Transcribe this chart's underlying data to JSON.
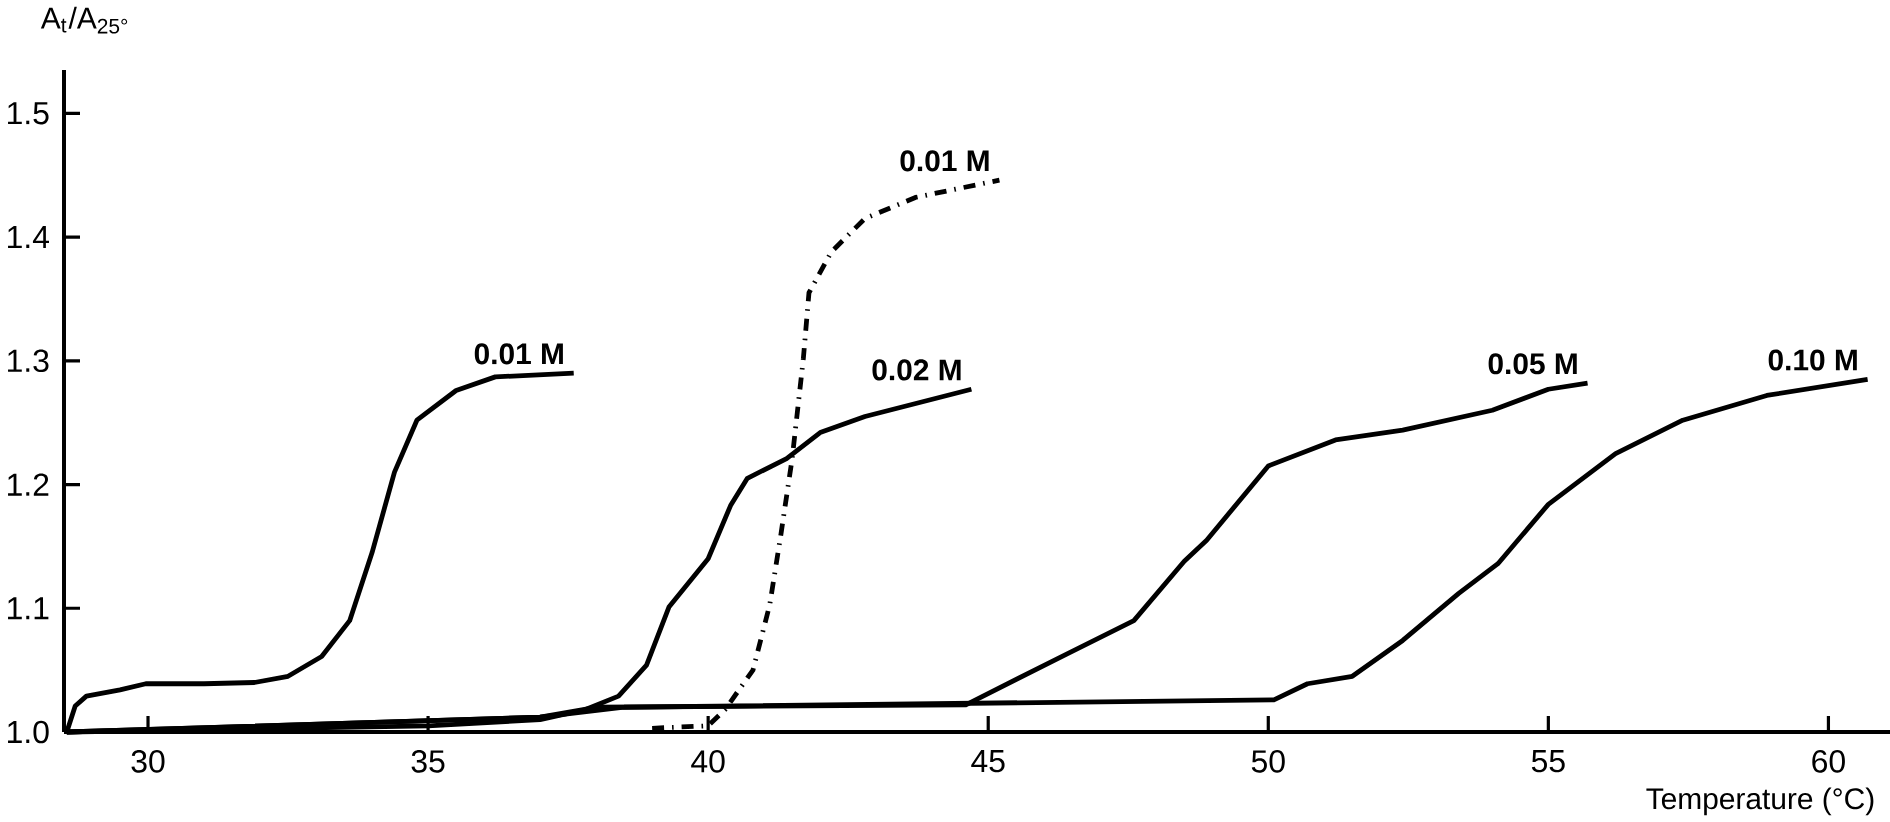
{
  "chart_data": {
    "type": "line",
    "xlabel": "Temperature  (°C)",
    "ylabel": "A$_{t}$/A$_{25°}$",
    "xlim": [
      28.5,
      61.1
    ],
    "ylim": [
      1.0,
      1.535
    ],
    "xticks": [
      30,
      35,
      40,
      45,
      50,
      55,
      60
    ],
    "yticks": [
      {
        "value": 1.0,
        "label": "1.0"
      },
      1.1,
      1.2,
      1.3,
      1.4,
      1.5
    ],
    "grid": false,
    "marker": "none",
    "series": [
      {
        "name": "0.01 M",
        "color": "#000000",
        "line_style": "solid",
        "x": [
          28.55,
          28.7,
          28.9,
          29.5,
          29.96,
          31.0,
          31.9,
          32.5,
          33.1,
          33.6,
          34.0,
          34.4,
          34.8,
          35.5,
          36.2,
          37.6
        ],
        "values": [
          1.0,
          1.021,
          1.029,
          1.034,
          1.039,
          1.039,
          1.04,
          1.045,
          1.061,
          1.09,
          1.145,
          1.21,
          1.252,
          1.276,
          1.287,
          1.29
        ]
      },
      {
        "name": "0.02 M",
        "color": "#000000",
        "line_style": "solid",
        "x": [
          28.55,
          35.0,
          37.0,
          37.8,
          38.4,
          38.9,
          39.3,
          40.0,
          40.4,
          40.7,
          41.4,
          42.0,
          42.8,
          44.7
        ],
        "values": [
          1.0,
          1.005,
          1.01,
          1.018,
          1.029,
          1.054,
          1.101,
          1.14,
          1.183,
          1.205,
          1.221,
          1.242,
          1.255,
          1.277
        ]
      },
      {
        "name": "0.01 M",
        "color": "#000000",
        "line_style": "dashdot",
        "x": [
          39.0,
          40.0,
          40.3,
          40.8,
          41.1,
          41.3,
          41.5,
          41.7,
          41.8,
          42.2,
          42.8,
          43.7,
          45.2
        ],
        "values": [
          1.003,
          1.005,
          1.018,
          1.05,
          1.103,
          1.16,
          1.221,
          1.302,
          1.355,
          1.388,
          1.415,
          1.432,
          1.446
        ]
      },
      {
        "name": "0.05 M",
        "color": "#000000",
        "line_style": "solid",
        "x": [
          28.55,
          37.0,
          38.0,
          44.6,
          46.4,
          47.6,
          48.5,
          48.9,
          50.0,
          51.2,
          52.4,
          54.0,
          55.0,
          55.7
        ],
        "values": [
          1.0,
          1.012,
          1.02,
          1.022,
          1.063,
          1.09,
          1.138,
          1.155,
          1.215,
          1.236,
          1.244,
          1.26,
          1.277,
          1.282
        ]
      },
      {
        "name": "0.10 M",
        "color": "#000000",
        "line_style": "solid",
        "x": [
          28.55,
          37.0,
          38.5,
          50.1,
          50.7,
          51.5,
          52.4,
          53.4,
          54.1,
          55.0,
          56.2,
          57.4,
          58.9,
          60.7
        ],
        "values": [
          1.0,
          1.012,
          1.02,
          1.026,
          1.039,
          1.045,
          1.074,
          1.112,
          1.136,
          1.184,
          1.225,
          1.252,
          1.272,
          1.285
        ]
      }
    ]
  }
}
